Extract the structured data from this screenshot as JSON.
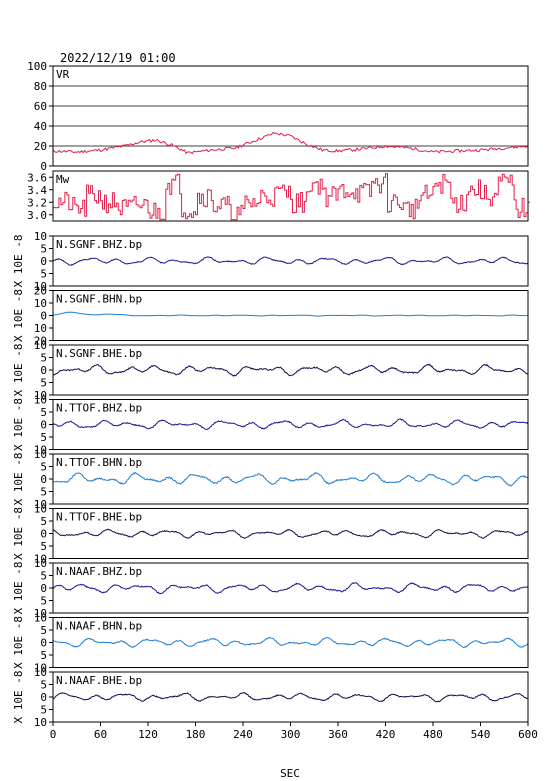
{
  "title": "2022/12/19 01:00",
  "chart_data": {
    "type": "line",
    "xlabel": "SEC",
    "xlim": [
      0,
      600
    ],
    "xticks": [
      0,
      60,
      120,
      180,
      240,
      300,
      360,
      420,
      480,
      540,
      600
    ],
    "vr": {
      "label": "VR",
      "ylim": [
        0,
        100
      ],
      "yticks": [
        0,
        20,
        40,
        60,
        80,
        100
      ],
      "color": "#e0204a",
      "x": [
        0,
        30,
        60,
        90,
        110,
        130,
        150,
        170,
        200,
        230,
        260,
        280,
        300,
        320,
        340,
        360,
        390,
        420,
        450,
        480,
        510,
        540,
        570,
        600
      ],
      "y": [
        15,
        14,
        16,
        20,
        24,
        26,
        21,
        13,
        16,
        18,
        27,
        33,
        30,
        22,
        16,
        15,
        17,
        20,
        18,
        14,
        15,
        16,
        18,
        20
      ]
    },
    "mw": {
      "label": "Mw",
      "ylim": [
        2.9,
        3.7
      ],
      "yticks": [
        3.0,
        3.2,
        3.4,
        3.6
      ],
      "ytick_labels": [
        "3.0",
        "3.2",
        "3.4",
        "3.6"
      ],
      "color": "#e0204a",
      "x": [
        0,
        20,
        40,
        60,
        80,
        100,
        120,
        140,
        160,
        180,
        200,
        220,
        240,
        260,
        280,
        300,
        320,
        340,
        360,
        380,
        400,
        420,
        440,
        460,
        480,
        500,
        520,
        540,
        560,
        580,
        600
      ],
      "y": [
        3.2,
        3.1,
        3.3,
        3.2,
        3.1,
        3.15,
        3.05,
        3.5,
        3.1,
        3.3,
        3.15,
        3.0,
        3.2,
        3.3,
        3.35,
        3.2,
        3.5,
        3.3,
        3.4,
        3.35,
        3.5,
        3.2,
        3.1,
        3.3,
        3.5,
        3.2,
        3.4,
        3.3,
        3.5,
        3.1,
        3.05
      ]
    },
    "waveforms": {
      "ylim": [
        -10,
        10
      ],
      "yticks": [
        -10,
        -5,
        0,
        5,
        10
      ],
      "ytick_labels": [
        "10",
        "5",
        "0",
        "5",
        "10"
      ],
      "unit_label": "X 10E -8",
      "traces": [
        {
          "name": "N.SGNF.BHZ.bp",
          "color": "#1a1a8c",
          "amp": 1.2,
          "seed": 1
        },
        {
          "name": "N.SGNF.BHN.bp",
          "color": "#1f7fd0",
          "amp": 0.3,
          "seed": 2,
          "bump": true,
          "ylim": [
            -20,
            20
          ],
          "yticks": [
            -20,
            -10,
            0,
            10,
            20
          ],
          "ytick_labels": [
            "20",
            "10",
            "0",
            "10",
            "20"
          ]
        },
        {
          "name": "N.SGNF.BHE.bp",
          "color": "#101050",
          "amp": 1.6,
          "seed": 3
        },
        {
          "name": "N.TTOF.BHZ.bp",
          "color": "#1a1a8c",
          "amp": 1.4,
          "seed": 4
        },
        {
          "name": "N.TTOF.BHN.bp",
          "color": "#1f7fd0",
          "amp": 1.8,
          "seed": 5
        },
        {
          "name": "N.TTOF.BHE.bp",
          "color": "#101050",
          "amp": 1.3,
          "seed": 6
        },
        {
          "name": "N.NAAF.BHZ.bp",
          "color": "#1a1a8c",
          "amp": 1.5,
          "seed": 7
        },
        {
          "name": "N.NAAF.BHN.bp",
          "color": "#1f7fd0",
          "amp": 1.4,
          "seed": 8
        },
        {
          "name": "N.NAAF.BHE.bp",
          "color": "#101050",
          "amp": 1.3,
          "seed": 9
        }
      ]
    }
  }
}
